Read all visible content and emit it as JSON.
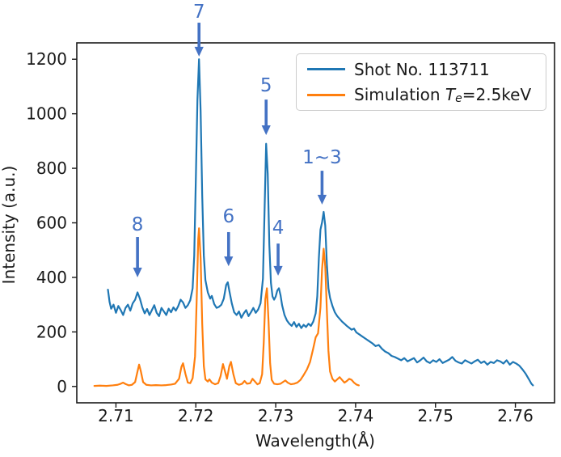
{
  "figure": {
    "background": "#ffffff",
    "text_color": "#1a1a1a",
    "spine_color": "#1a1a1a"
  },
  "chart_data": {
    "type": "line",
    "title": "",
    "xlabel": "Wavelength(Å)",
    "ylabel": "Intensity (a.u.)",
    "xlim": [
      2.7051,
      2.7649
    ],
    "ylim": [
      -60,
      1260
    ],
    "grid": false,
    "x_ticks": {
      "values": [
        2.71,
        2.72,
        2.73,
        2.74,
        2.75,
        2.76
      ],
      "labels": [
        "2.71",
        "2.72",
        "2.73",
        "2.74",
        "2.75",
        "2.76"
      ]
    },
    "y_ticks": {
      "values": [
        0,
        200,
        400,
        600,
        800,
        1000,
        1200
      ],
      "labels": [
        "0",
        "200",
        "400",
        "600",
        "800",
        "1000",
        "1200"
      ]
    },
    "legend": {
      "position": "upper right",
      "entries": [
        {
          "label": "Shot No. 113711",
          "color": "#1f77b4"
        },
        {
          "label": "Simulation Te=2.5keV",
          "parts": {
            "prefix": "Simulation ",
            "symbol": "T",
            "subscript": "e",
            "suffix": "=2.5keV"
          },
          "color": "#ff7f0e"
        }
      ]
    },
    "annotation_color": "#4472c4",
    "annotations": [
      {
        "label": "8",
        "x": 2.7127,
        "label_y": 592,
        "tail_y": 548,
        "head_y": 400
      },
      {
        "label": "7",
        "x": 2.7204,
        "label_y": 1373,
        "tail_y": 1334,
        "head_y": 1210
      },
      {
        "label": "6",
        "x": 2.7241,
        "label_y": 622,
        "tail_y": 566,
        "head_y": 441
      },
      {
        "label": "5",
        "x": 2.7288,
        "label_y": 1103,
        "tail_y": 1052,
        "head_y": 922
      },
      {
        "label": "4",
        "x": 2.7303,
        "label_y": 581,
        "tail_y": 524,
        "head_y": 406
      },
      {
        "label": "1~3",
        "x": 2.7358,
        "label_y": 839,
        "tail_y": 791,
        "head_y": 667
      }
    ],
    "series": [
      {
        "name": "Shot No. 113711",
        "color": "#1f77b4",
        "points": [
          [
            2.709,
            355
          ],
          [
            2.7092,
            310
          ],
          [
            2.7094,
            285
          ],
          [
            2.7097,
            300
          ],
          [
            2.71,
            270
          ],
          [
            2.7103,
            295
          ],
          [
            2.7106,
            280
          ],
          [
            2.7109,
            262
          ],
          [
            2.7112,
            288
          ],
          [
            2.7115,
            300
          ],
          [
            2.7118,
            278
          ],
          [
            2.7121,
            305
          ],
          [
            2.7124,
            318
          ],
          [
            2.7127,
            345
          ],
          [
            2.713,
            322
          ],
          [
            2.7133,
            290
          ],
          [
            2.7136,
            268
          ],
          [
            2.7139,
            284
          ],
          [
            2.7142,
            262
          ],
          [
            2.7145,
            280
          ],
          [
            2.7148,
            298
          ],
          [
            2.7151,
            270
          ],
          [
            2.7154,
            258
          ],
          [
            2.7157,
            288
          ],
          [
            2.716,
            275
          ],
          [
            2.7163,
            262
          ],
          [
            2.7166,
            285
          ],
          [
            2.7169,
            272
          ],
          [
            2.7172,
            290
          ],
          [
            2.7175,
            278
          ],
          [
            2.7178,
            295
          ],
          [
            2.7181,
            318
          ],
          [
            2.7184,
            308
          ],
          [
            2.7187,
            288
          ],
          [
            2.719,
            298
          ],
          [
            2.7193,
            316
          ],
          [
            2.7196,
            360
          ],
          [
            2.7198,
            480
          ],
          [
            2.72,
            760
          ],
          [
            2.7202,
            1050
          ],
          [
            2.7204,
            1200
          ],
          [
            2.7206,
            1010
          ],
          [
            2.7208,
            700
          ],
          [
            2.721,
            480
          ],
          [
            2.7212,
            390
          ],
          [
            2.7215,
            345
          ],
          [
            2.7218,
            322
          ],
          [
            2.722,
            332
          ],
          [
            2.7223,
            302
          ],
          [
            2.7226,
            288
          ],
          [
            2.7229,
            292
          ],
          [
            2.7232,
            300
          ],
          [
            2.7235,
            322
          ],
          [
            2.7238,
            372
          ],
          [
            2.724,
            382
          ],
          [
            2.7242,
            350
          ],
          [
            2.7245,
            305
          ],
          [
            2.7248,
            272
          ],
          [
            2.7251,
            262
          ],
          [
            2.7254,
            275
          ],
          [
            2.7257,
            252
          ],
          [
            2.726,
            268
          ],
          [
            2.7263,
            280
          ],
          [
            2.7266,
            258
          ],
          [
            2.7269,
            272
          ],
          [
            2.7272,
            288
          ],
          [
            2.7275,
            270
          ],
          [
            2.7278,
            282
          ],
          [
            2.7281,
            305
          ],
          [
            2.7284,
            395
          ],
          [
            2.7286,
            640
          ],
          [
            2.7288,
            890
          ],
          [
            2.729,
            780
          ],
          [
            2.7292,
            520
          ],
          [
            2.7294,
            380
          ],
          [
            2.7296,
            330
          ],
          [
            2.7298,
            318
          ],
          [
            2.73,
            330
          ],
          [
            2.7302,
            352
          ],
          [
            2.7304,
            360
          ],
          [
            2.7306,
            335
          ],
          [
            2.7308,
            298
          ],
          [
            2.7311,
            262
          ],
          [
            2.7314,
            242
          ],
          [
            2.7317,
            230
          ],
          [
            2.732,
            222
          ],
          [
            2.7323,
            236
          ],
          [
            2.7326,
            218
          ],
          [
            2.7329,
            230
          ],
          [
            2.7332,
            214
          ],
          [
            2.7335,
            226
          ],
          [
            2.7338,
            218
          ],
          [
            2.7341,
            230
          ],
          [
            2.7344,
            222
          ],
          [
            2.7347,
            238
          ],
          [
            2.735,
            268
          ],
          [
            2.7352,
            330
          ],
          [
            2.7354,
            470
          ],
          [
            2.7356,
            575
          ],
          [
            2.7358,
            602
          ],
          [
            2.736,
            640
          ],
          [
            2.7362,
            590
          ],
          [
            2.7364,
            450
          ],
          [
            2.7366,
            360
          ],
          [
            2.7368,
            325
          ],
          [
            2.7371,
            295
          ],
          [
            2.7374,
            272
          ],
          [
            2.7377,
            258
          ],
          [
            2.738,
            248
          ],
          [
            2.7383,
            238
          ],
          [
            2.7386,
            230
          ],
          [
            2.7389,
            222
          ],
          [
            2.7392,
            215
          ],
          [
            2.7395,
            208
          ],
          [
            2.7398,
            212
          ],
          [
            2.7401,
            198
          ],
          [
            2.7405,
            190
          ],
          [
            2.7409,
            182
          ],
          [
            2.7413,
            174
          ],
          [
            2.7417,
            166
          ],
          [
            2.7421,
            158
          ],
          [
            2.7425,
            148
          ],
          [
            2.7429,
            152
          ],
          [
            2.7433,
            138
          ],
          [
            2.7437,
            128
          ],
          [
            2.7441,
            122
          ],
          [
            2.7445,
            112
          ],
          [
            2.7449,
            108
          ],
          [
            2.7453,
            102
          ],
          [
            2.7457,
            96
          ],
          [
            2.7461,
            104
          ],
          [
            2.7465,
            92
          ],
          [
            2.7469,
            98
          ],
          [
            2.7473,
            104
          ],
          [
            2.7477,
            88
          ],
          [
            2.7481,
            96
          ],
          [
            2.7485,
            106
          ],
          [
            2.7489,
            92
          ],
          [
            2.7493,
            86
          ],
          [
            2.7497,
            96
          ],
          [
            2.7501,
            90
          ],
          [
            2.7505,
            100
          ],
          [
            2.7509,
            86
          ],
          [
            2.7513,
            92
          ],
          [
            2.7517,
            98
          ],
          [
            2.7521,
            108
          ],
          [
            2.7525,
            94
          ],
          [
            2.7529,
            88
          ],
          [
            2.7533,
            84
          ],
          [
            2.7537,
            96
          ],
          [
            2.7541,
            90
          ],
          [
            2.7545,
            84
          ],
          [
            2.7549,
            92
          ],
          [
            2.7553,
            98
          ],
          [
            2.7557,
            86
          ],
          [
            2.7561,
            92
          ],
          [
            2.7565,
            80
          ],
          [
            2.7569,
            90
          ],
          [
            2.7573,
            86
          ],
          [
            2.7577,
            96
          ],
          [
            2.7581,
            92
          ],
          [
            2.7585,
            84
          ],
          [
            2.7589,
            96
          ],
          [
            2.7593,
            80
          ],
          [
            2.7597,
            90
          ],
          [
            2.7601,
            84
          ],
          [
            2.7605,
            76
          ],
          [
            2.7609,
            62
          ],
          [
            2.7613,
            46
          ],
          [
            2.7617,
            26
          ],
          [
            2.762,
            10
          ],
          [
            2.7622,
            4
          ]
        ]
      },
      {
        "name": "Simulation Te=2.5keV",
        "color": "#ff7f0e",
        "points": [
          [
            2.7073,
            2
          ],
          [
            2.708,
            3
          ],
          [
            2.7088,
            2
          ],
          [
            2.7096,
            4
          ],
          [
            2.7102,
            6
          ],
          [
            2.7106,
            10
          ],
          [
            2.7109,
            14
          ],
          [
            2.7112,
            9
          ],
          [
            2.7116,
            4
          ],
          [
            2.712,
            6
          ],
          [
            2.7124,
            16
          ],
          [
            2.7127,
            55
          ],
          [
            2.7129,
            80
          ],
          [
            2.7131,
            58
          ],
          [
            2.7134,
            16
          ],
          [
            2.7138,
            6
          ],
          [
            2.7144,
            4
          ],
          [
            2.715,
            5
          ],
          [
            2.7157,
            4
          ],
          [
            2.7163,
            5
          ],
          [
            2.7169,
            7
          ],
          [
            2.7174,
            10
          ],
          [
            2.7179,
            28
          ],
          [
            2.7182,
            72
          ],
          [
            2.7184,
            85
          ],
          [
            2.7187,
            46
          ],
          [
            2.719,
            14
          ],
          [
            2.7193,
            12
          ],
          [
            2.7196,
            30
          ],
          [
            2.7199,
            110
          ],
          [
            2.7201,
            310
          ],
          [
            2.7203,
            540
          ],
          [
            2.7204,
            580
          ],
          [
            2.7206,
            470
          ],
          [
            2.7208,
            230
          ],
          [
            2.721,
            75
          ],
          [
            2.7212,
            26
          ],
          [
            2.7215,
            18
          ],
          [
            2.7217,
            26
          ],
          [
            2.722,
            14
          ],
          [
            2.7224,
            8
          ],
          [
            2.7228,
            12
          ],
          [
            2.7231,
            38
          ],
          [
            2.7234,
            82
          ],
          [
            2.7237,
            50
          ],
          [
            2.7239,
            28
          ],
          [
            2.7242,
            75
          ],
          [
            2.7244,
            90
          ],
          [
            2.7247,
            45
          ],
          [
            2.725,
            12
          ],
          [
            2.7254,
            6
          ],
          [
            2.7258,
            10
          ],
          [
            2.7261,
            20
          ],
          [
            2.7264,
            10
          ],
          [
            2.7268,
            12
          ],
          [
            2.7271,
            28
          ],
          [
            2.7274,
            18
          ],
          [
            2.7277,
            8
          ],
          [
            2.728,
            12
          ],
          [
            2.7283,
            45
          ],
          [
            2.7285,
            160
          ],
          [
            2.7287,
            320
          ],
          [
            2.7289,
            360
          ],
          [
            2.7291,
            240
          ],
          [
            2.7293,
            85
          ],
          [
            2.7295,
            24
          ],
          [
            2.7298,
            10
          ],
          [
            2.7302,
            8
          ],
          [
            2.7306,
            10
          ],
          [
            2.7309,
            16
          ],
          [
            2.7312,
            22
          ],
          [
            2.7315,
            14
          ],
          [
            2.7319,
            8
          ],
          [
            2.7323,
            10
          ],
          [
            2.7327,
            14
          ],
          [
            2.7331,
            24
          ],
          [
            2.7335,
            42
          ],
          [
            2.7339,
            62
          ],
          [
            2.7343,
            90
          ],
          [
            2.7347,
            140
          ],
          [
            2.735,
            180
          ],
          [
            2.7353,
            195
          ],
          [
            2.7356,
            290
          ],
          [
            2.7358,
            430
          ],
          [
            2.736,
            505
          ],
          [
            2.7362,
            440
          ],
          [
            2.7364,
            280
          ],
          [
            2.7366,
            130
          ],
          [
            2.7368,
            55
          ],
          [
            2.7371,
            28
          ],
          [
            2.7374,
            18
          ],
          [
            2.7377,
            26
          ],
          [
            2.738,
            34
          ],
          [
            2.7383,
            24
          ],
          [
            2.7386,
            14
          ],
          [
            2.7389,
            20
          ],
          [
            2.7392,
            28
          ],
          [
            2.7395,
            24
          ],
          [
            2.7398,
            14
          ],
          [
            2.7401,
            7
          ],
          [
            2.7404,
            4
          ]
        ]
      }
    ]
  }
}
